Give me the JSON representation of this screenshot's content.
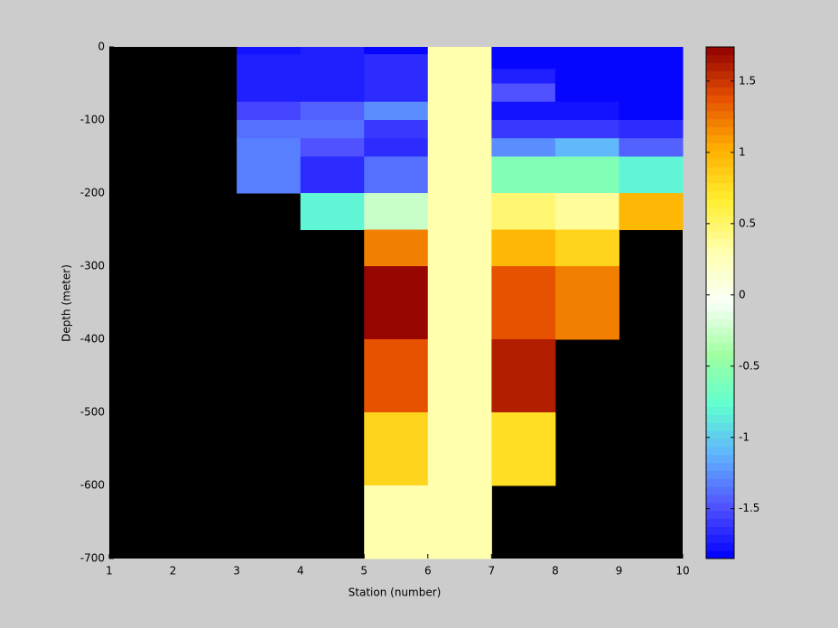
{
  "chart_data": {
    "type": "heatmap",
    "x_label": "Station (number)",
    "y_label": "Depth (meter)",
    "x_edges": [
      1,
      2,
      3,
      4,
      5,
      6,
      7,
      8,
      9,
      10
    ],
    "y_edges": [
      0,
      -10,
      -20,
      -30,
      -50,
      -75,
      -100,
      -125,
      -150,
      -200,
      -250,
      -300,
      -400,
      -500,
      -600,
      -700
    ],
    "z": [
      [
        null,
        null,
        -1.75,
        -1.7,
        -1.8,
        0.3,
        -1.8,
        -1.8,
        -1.8
      ],
      [
        null,
        null,
        -1.7,
        -1.7,
        -1.65,
        0.3,
        -1.8,
        -1.8,
        -1.8
      ],
      [
        null,
        null,
        -1.7,
        -1.7,
        -1.65,
        0.3,
        -1.8,
        -1.8,
        -1.8
      ],
      [
        null,
        null,
        -1.7,
        -1.7,
        -1.65,
        0.3,
        -1.7,
        -1.8,
        -1.8
      ],
      [
        null,
        null,
        -1.7,
        -1.7,
        -1.65,
        0.3,
        -1.5,
        -1.8,
        -1.8
      ],
      [
        null,
        null,
        -1.55,
        -1.45,
        -1.25,
        0.3,
        -1.75,
        -1.75,
        -1.8
      ],
      [
        null,
        null,
        -1.4,
        -1.35,
        -1.6,
        0.3,
        -1.6,
        -1.6,
        -1.65
      ],
      [
        null,
        null,
        -1.3,
        -1.5,
        -1.65,
        0.3,
        -1.25,
        -1.1,
        -1.45
      ],
      [
        null,
        null,
        -1.3,
        -1.65,
        -1.4,
        0.3,
        -0.6,
        -0.6,
        -0.8
      ],
      [
        null,
        null,
        null,
        -0.8,
        -0.25,
        0.3,
        0.45,
        0.35,
        1.0
      ],
      [
        null,
        null,
        null,
        null,
        1.2,
        0.3,
        1.0,
        0.8,
        null
      ],
      [
        null,
        null,
        null,
        null,
        1.75,
        0.3,
        1.4,
        1.2,
        null
      ],
      [
        null,
        null,
        null,
        null,
        1.4,
        0.3,
        1.6,
        null,
        null
      ],
      [
        null,
        null,
        null,
        null,
        0.8,
        0.3,
        0.75,
        null,
        null
      ],
      [
        null,
        null,
        null,
        null,
        0.3,
        0.3,
        null,
        null,
        null
      ]
    ],
    "xlim": [
      1,
      10
    ],
    "xticks": [
      1,
      2,
      3,
      4,
      5,
      6,
      7,
      8,
      9,
      10
    ],
    "ylim": [
      -700,
      0
    ],
    "yticks": [
      0,
      -100,
      -200,
      -300,
      -400,
      -500,
      -600,
      -700
    ],
    "clim": [
      -1.85,
      1.74
    ],
    "cticks": [
      1.5,
      1,
      0.5,
      0,
      -0.5,
      -1,
      -1.5
    ],
    "colormap": [
      "#0000ff",
      "#5050ff",
      "#60b0ff",
      "#60ffd0",
      "#a0ffa0",
      "#f8fff8",
      "#ffffb0",
      "#ffee30",
      "#ffb000",
      "#e65000",
      "#900000"
    ],
    "colormap_levels": 64,
    "nan_color": "#000000"
  }
}
